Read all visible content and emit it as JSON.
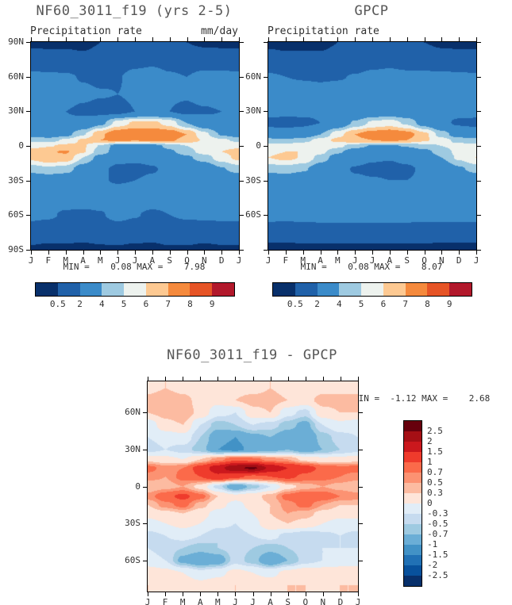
{
  "figure": {
    "background": "#ffffff"
  },
  "chart_data": [
    {
      "id": "model-precip",
      "type": "heatmap",
      "title": "NF60_3011_f19 (yrs 2-5)",
      "subtitle_left": "Precipitation rate",
      "units": "mm/day",
      "minmax_text": "MIN =    0.08 MAX =    7.98",
      "x_ticklabels": [
        "J",
        "F",
        "M",
        "A",
        "M",
        "J",
        "J",
        "A",
        "S",
        "O",
        "N",
        "D",
        "J"
      ],
      "y_ticks": [
        {
          "label": "90N",
          "lat": 90
        },
        {
          "label": "60N",
          "lat": 60
        },
        {
          "label": "30N",
          "lat": 30
        },
        {
          "label": "0",
          "lat": 0
        },
        {
          "label": "30S",
          "lat": -30
        },
        {
          "label": "60S",
          "lat": -60
        },
        {
          "label": "90S",
          "lat": -90
        }
      ],
      "lat_range": [
        90,
        -90
      ],
      "levels": [
        0.5,
        2,
        4,
        5,
        6,
        7,
        8,
        9
      ],
      "colors": [
        "#08306b",
        "#2061a9",
        "#3b8bc9",
        "#9ecae1",
        "#edf2ee",
        "#fdc992",
        "#f58a3d",
        "#e65426",
        "#b2182b"
      ],
      "colorbar_labels": [
        "0.5",
        "2",
        "4",
        "5",
        "6",
        "7",
        "8",
        "9"
      ],
      "lats": [
        90,
        75,
        60,
        45,
        30,
        20,
        10,
        5,
        0,
        -5,
        -10,
        -20,
        -30,
        -45,
        -60,
        -75,
        -90
      ],
      "values": [
        [
          0.4,
          0.4,
          0.4,
          0.4,
          0.5,
          0.6,
          0.8,
          0.8,
          0.7,
          0.5,
          0.4,
          0.4
        ],
        [
          0.8,
          0.7,
          0.7,
          0.6,
          0.7,
          1.0,
          1.4,
          1.6,
          1.3,
          1.0,
          0.9,
          0.8
        ],
        [
          2.4,
          2.3,
          2.2,
          1.9,
          1.7,
          1.9,
          2.5,
          2.7,
          2.2,
          2.0,
          2.5,
          2.5
        ],
        [
          2.8,
          2.7,
          2.7,
          2.3,
          2.1,
          2.0,
          2.2,
          2.3,
          2.2,
          2.2,
          2.7,
          2.9
        ],
        [
          2.1,
          2.0,
          2.0,
          1.7,
          1.4,
          1.5,
          2.0,
          2.2,
          2.0,
          1.6,
          1.8,
          2.0
        ],
        [
          2.3,
          2.1,
          2.2,
          2.6,
          3.6,
          5.4,
          6.2,
          6.3,
          5.6,
          4.0,
          2.9,
          2.4
        ],
        [
          3.3,
          3.1,
          3.6,
          4.9,
          6.8,
          7.9,
          8.0,
          7.9,
          7.8,
          7.0,
          5.3,
          3.9
        ],
        [
          4.8,
          4.6,
          5.2,
          6.2,
          7.0,
          7.2,
          7.1,
          7.2,
          7.2,
          6.6,
          5.9,
          5.2
        ],
        [
          5.7,
          5.9,
          6.3,
          6.1,
          4.9,
          3.4,
          3.3,
          3.5,
          4.3,
          5.0,
          5.5,
          5.7
        ],
        [
          6.4,
          6.9,
          7.1,
          6.1,
          4.5,
          3.4,
          3.0,
          3.1,
          3.8,
          4.6,
          5.4,
          6.0
        ],
        [
          6.3,
          6.9,
          6.7,
          5.0,
          3.5,
          2.5,
          2.3,
          2.4,
          3.0,
          3.8,
          4.5,
          5.5
        ],
        [
          4.5,
          4.8,
          4.5,
          3.3,
          2.3,
          1.7,
          1.7,
          1.9,
          2.3,
          2.6,
          3.0,
          3.9
        ],
        [
          2.8,
          3.0,
          2.9,
          2.5,
          2.1,
          1.9,
          2.0,
          2.2,
          2.3,
          2.4,
          2.4,
          2.6
        ],
        [
          2.6,
          2.6,
          2.8,
          2.8,
          2.7,
          2.9,
          2.9,
          3.0,
          2.7,
          2.5,
          2.6,
          2.7
        ],
        [
          2.4,
          2.2,
          1.8,
          1.7,
          1.9,
          2.4,
          2.1,
          1.7,
          2.0,
          2.2,
          2.3,
          2.4
        ],
        [
          1.0,
          1.0,
          1.0,
          0.9,
          0.9,
          1.1,
          1.0,
          0.9,
          1.1,
          1.1,
          1.0,
          1.0
        ],
        [
          0.4,
          0.3,
          0.3,
          0.3,
          0.4,
          0.4,
          0.3,
          0.3,
          0.4,
          0.4,
          0.3,
          0.4
        ]
      ]
    },
    {
      "id": "gpcp-precip",
      "type": "heatmap",
      "title": "GPCP",
      "subtitle_left": "Precipitation rate",
      "minmax_text": "MIN =    0.08 MAX =    8.07",
      "x_ticklabels": [
        "J",
        "F",
        "M",
        "A",
        "M",
        "J",
        "J",
        "A",
        "S",
        "O",
        "N",
        "D",
        "J"
      ],
      "y_ticks": [
        {
          "label": "",
          "lat": 90
        },
        {
          "label": "60N",
          "lat": 60
        },
        {
          "label": "30N",
          "lat": 30
        },
        {
          "label": "0",
          "lat": 0
        },
        {
          "label": "30S",
          "lat": -30
        },
        {
          "label": "60S",
          "lat": -60
        },
        {
          "label": "",
          "lat": -90
        }
      ],
      "lat_range": [
        90,
        -90
      ],
      "levels": [
        0.5,
        2,
        4,
        5,
        6,
        7,
        8,
        9
      ],
      "colors": [
        "#08306b",
        "#2061a9",
        "#3b8bc9",
        "#9ecae1",
        "#edf2ee",
        "#fdc992",
        "#f58a3d",
        "#e65426",
        "#b2182b"
      ],
      "colorbar_labels": [
        "0.5",
        "2",
        "4",
        "5",
        "6",
        "7",
        "8",
        "9"
      ],
      "lats": [
        90,
        75,
        60,
        45,
        30,
        20,
        10,
        5,
        0,
        -5,
        -10,
        -20,
        -30,
        -45,
        -60,
        -75,
        -90
      ],
      "values": [
        [
          0.4,
          0.4,
          0.4,
          0.4,
          0.5,
          0.6,
          0.8,
          0.8,
          0.7,
          0.5,
          0.4,
          0.4
        ],
        [
          0.7,
          0.6,
          0.6,
          0.6,
          0.7,
          0.9,
          1.3,
          1.5,
          1.2,
          1.0,
          0.8,
          0.7
        ],
        [
          2.2,
          2.0,
          1.9,
          1.8,
          1.9,
          2.1,
          2.4,
          2.5,
          2.4,
          2.4,
          2.4,
          2.3
        ],
        [
          3.0,
          2.8,
          2.8,
          2.7,
          2.8,
          2.8,
          2.9,
          2.9,
          2.9,
          3.0,
          3.1,
          3.1
        ],
        [
          2.4,
          2.3,
          2.3,
          2.2,
          2.2,
          2.4,
          2.8,
          2.9,
          2.7,
          2.4,
          2.4,
          2.4
        ],
        [
          1.7,
          1.6,
          1.7,
          2.0,
          2.8,
          4.2,
          5.2,
          5.5,
          4.8,
          3.4,
          2.3,
          1.8
        ],
        [
          2.7,
          2.6,
          3.0,
          4.0,
          5.6,
          7.0,
          7.6,
          7.9,
          7.5,
          6.3,
          4.6,
          3.2
        ],
        [
          4.4,
          4.2,
          4.6,
          5.4,
          6.3,
          6.8,
          7.0,
          7.2,
          7.0,
          6.2,
          5.4,
          4.7
        ],
        [
          5.4,
          5.5,
          5.8,
          5.9,
          5.3,
          4.4,
          3.9,
          3.8,
          4.1,
          4.6,
          5.0,
          5.3
        ],
        [
          5.8,
          6.0,
          6.0,
          5.3,
          4.2,
          3.3,
          2.8,
          2.7,
          3.0,
          3.6,
          4.5,
          5.3
        ],
        [
          6.0,
          6.3,
          5.9,
          4.6,
          3.4,
          2.6,
          2.2,
          2.1,
          2.4,
          3.0,
          4.0,
          5.2
        ],
        [
          4.4,
          4.6,
          4.2,
          3.2,
          2.4,
          1.9,
          1.7,
          1.6,
          1.8,
          2.2,
          2.8,
          3.8
        ],
        [
          2.9,
          3.0,
          2.8,
          2.5,
          2.3,
          2.2,
          2.1,
          2.0,
          2.0,
          2.2,
          2.4,
          2.7
        ],
        [
          3.0,
          2.9,
          3.0,
          3.1,
          3.2,
          3.3,
          3.2,
          3.2,
          3.1,
          3.0,
          3.0,
          3.0
        ],
        [
          2.6,
          2.5,
          2.6,
          2.7,
          2.8,
          2.8,
          2.7,
          2.7,
          2.7,
          2.6,
          2.6,
          2.6
        ],
        [
          0.9,
          0.9,
          1.0,
          1.0,
          1.0,
          1.0,
          1.0,
          1.0,
          1.0,
          1.0,
          0.9,
          0.9
        ],
        [
          0.3,
          0.3,
          0.3,
          0.3,
          0.3,
          0.3,
          0.3,
          0.3,
          0.3,
          0.3,
          0.3,
          0.3
        ]
      ]
    },
    {
      "id": "model-minus-gpcp",
      "type": "heatmap",
      "title": "NF60_3011_f19 - GPCP",
      "minmax_text": "MIN =  -1.12 MAX =    2.68",
      "x_ticklabels": [
        "J",
        "F",
        "M",
        "A",
        "M",
        "J",
        "J",
        "A",
        "S",
        "O",
        "N",
        "D",
        "J"
      ],
      "y_ticks": [
        {
          "label": "60N",
          "lat": 60
        },
        {
          "label": "30N",
          "lat": 30
        },
        {
          "label": "0",
          "lat": 0
        },
        {
          "label": "30S",
          "lat": -30
        },
        {
          "label": "60S",
          "lat": -60
        }
      ],
      "lat_range": [
        85,
        -85
      ],
      "levels": [
        -2.5,
        -2,
        -1.5,
        -1,
        -0.7,
        -0.5,
        -0.3,
        0,
        0.3,
        0.5,
        0.7,
        1,
        1.5,
        2,
        2.5
      ],
      "colors": [
        "#08306b",
        "#08519c",
        "#2171b5",
        "#4292c6",
        "#6baed6",
        "#9ecae1",
        "#c6dbef",
        "#e1edf7",
        "#fee5d9",
        "#fcbba1",
        "#fc9272",
        "#fb6a4a",
        "#ef3b2c",
        "#cb181d",
        "#a50f15",
        "#67000d"
      ],
      "colorbar_labels": [
        "2.5",
        "2",
        "1.5",
        "1",
        "0.7",
        "0.5",
        "0.3",
        "0",
        "-0.3",
        "-0.5",
        "-0.7",
        "-1",
        "-1.5",
        "-2",
        "-2.5"
      ],
      "lats": [
        80,
        70,
        60,
        50,
        40,
        30,
        22,
        15,
        8,
        0,
        -8,
        -15,
        -22,
        -30,
        -40,
        -50,
        -60,
        -70,
        -80
      ],
      "values": [
        [
          0.2,
          0.3,
          0.2,
          0.1,
          0.1,
          0.2,
          0.2,
          0.3,
          0.2,
          0.1,
          0.2,
          0.2
        ],
        [
          0.4,
          0.5,
          0.4,
          0.2,
          0.1,
          0.3,
          0.4,
          0.4,
          0.3,
          0.2,
          0.4,
          0.4
        ],
        [
          0.3,
          0.4,
          0.5,
          0.2,
          -0.2,
          -0.3,
          0.2,
          0.3,
          -0.2,
          -0.4,
          0.2,
          0.3
        ],
        [
          -0.2,
          0.2,
          0.3,
          -0.3,
          -0.6,
          -0.5,
          -0.3,
          -0.4,
          -0.6,
          -0.8,
          -0.3,
          -0.1
        ],
        [
          -0.3,
          -0.2,
          -0.1,
          -0.5,
          -0.9,
          -1.0,
          -0.8,
          -0.7,
          -0.9,
          -1.0,
          -0.6,
          -0.4
        ],
        [
          -0.4,
          -0.3,
          -0.4,
          -0.6,
          -1.0,
          -1.1,
          -0.9,
          -0.8,
          -0.7,
          -0.9,
          -0.7,
          -0.5
        ],
        [
          0.2,
          0.1,
          0.0,
          0.3,
          0.6,
          0.9,
          0.8,
          0.6,
          0.5,
          0.2,
          0.1,
          0.1
        ],
        [
          0.8,
          0.6,
          0.7,
          1.2,
          1.8,
          2.4,
          2.6,
          1.9,
          1.5,
          1.2,
          0.9,
          0.8
        ],
        [
          0.6,
          0.5,
          0.8,
          1.0,
          1.4,
          1.1,
          0.9,
          1.0,
          1.1,
          0.9,
          0.8,
          0.7
        ],
        [
          0.3,
          0.4,
          0.5,
          0.2,
          -0.4,
          -1.0,
          -0.6,
          -0.3,
          0.2,
          0.4,
          0.5,
          0.4
        ],
        [
          0.6,
          0.9,
          1.1,
          0.8,
          0.3,
          0.1,
          0.2,
          0.4,
          0.8,
          1.0,
          0.9,
          0.7
        ],
        [
          0.3,
          0.6,
          0.8,
          0.4,
          0.1,
          -0.1,
          0.1,
          0.3,
          0.6,
          0.8,
          0.5,
          0.3
        ],
        [
          0.1,
          0.2,
          0.3,
          0.1,
          -0.1,
          -0.2,
          0.0,
          0.3,
          0.5,
          0.4,
          0.2,
          0.1
        ],
        [
          -0.1,
          0.0,
          0.1,
          0.0,
          -0.2,
          -0.3,
          -0.1,
          0.2,
          0.3,
          0.2,
          0.0,
          -0.1
        ],
        [
          -0.4,
          -0.3,
          -0.2,
          -0.3,
          -0.5,
          -0.4,
          -0.3,
          -0.2,
          -0.4,
          -0.5,
          -0.4,
          -0.3
        ],
        [
          -0.3,
          -0.4,
          -0.5,
          -0.6,
          -0.5,
          -0.4,
          -0.5,
          -0.6,
          -0.5,
          -0.4,
          -0.3,
          -0.3
        ],
        [
          -0.2,
          -0.3,
          -0.8,
          -1.0,
          -0.9,
          -0.4,
          -0.6,
          -1.0,
          -0.7,
          -0.4,
          -0.3,
          -0.2
        ],
        [
          0.2,
          0.1,
          0.0,
          -0.2,
          -0.1,
          0.1,
          0.0,
          -0.1,
          0.1,
          0.2,
          0.2,
          0.2
        ],
        [
          0.3,
          0.2,
          0.2,
          0.1,
          0.2,
          0.3,
          0.2,
          0.2,
          0.3,
          0.3,
          0.2,
          0.3
        ]
      ]
    }
  ]
}
